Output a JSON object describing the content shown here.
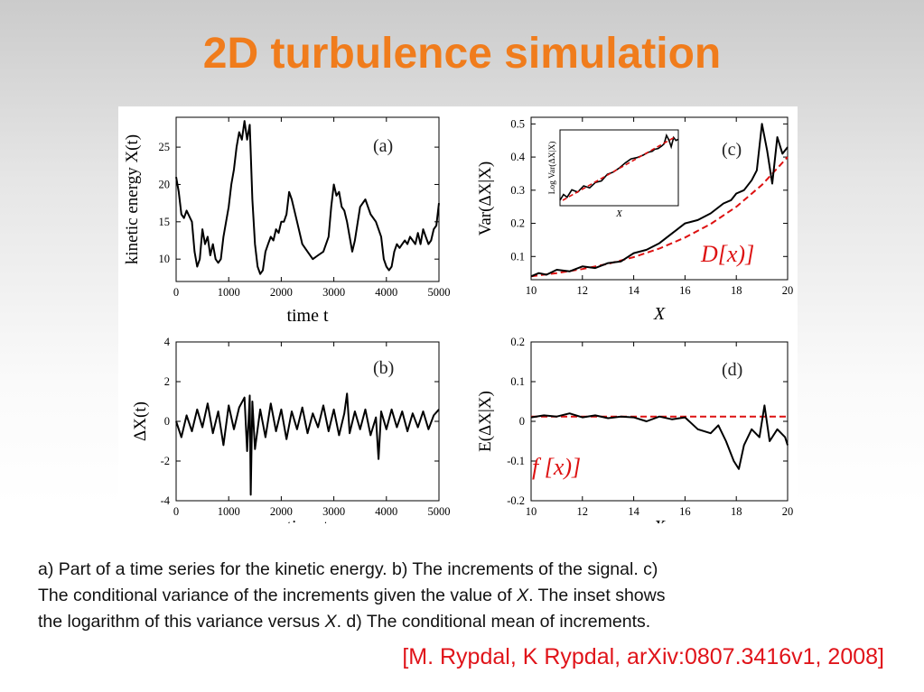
{
  "title": "2D turbulence simulation",
  "caption": {
    "line1": "a) Part of a time series for the kinetic energy. b) The increments of the signal. c)",
    "line2a": "The conditional variance of the increments given the value of ",
    "line2b": "X",
    "line2c": ". The inset shows",
    "line3a": "the logarithm of this variance versus ",
    "line3b": "X",
    "line3c": ". d) The conditional mean of increments."
  },
  "citation": "[M. Rypdal, K Rypdal, arXiv:0807.3416v1, 2008]",
  "colors": {
    "title": "#f07c1c",
    "citation": "#e0141a",
    "fit_line": "#dd1111",
    "series": "#000000"
  },
  "chart_data": [
    {
      "id": "a",
      "panel_label": "(a)",
      "type": "line",
      "xlabel": "time t",
      "ylabel": "kinetic energy X(t)",
      "xlim": [
        0,
        5000
      ],
      "ylim": [
        7,
        29
      ],
      "xticks": [
        0,
        1000,
        2000,
        3000,
        4000,
        5000
      ],
      "yticks": [
        10,
        15,
        20,
        25
      ],
      "series": [
        {
          "x": [
            0,
            50,
            100,
            150,
            200,
            300,
            350,
            400,
            450,
            500,
            550,
            600,
            650,
            700,
            750,
            800,
            850,
            900,
            950,
            1000,
            1050,
            1100,
            1150,
            1200,
            1250,
            1300,
            1350,
            1400,
            1450,
            1500,
            1550,
            1600,
            1650,
            1700,
            1750,
            1800,
            1850,
            1900,
            1950,
            2000,
            2050,
            2100,
            2150,
            2200,
            2300,
            2400,
            2500,
            2600,
            2700,
            2800,
            2900,
            2950,
            3000,
            3050,
            3100,
            3150,
            3200,
            3250,
            3300,
            3350,
            3400,
            3500,
            3600,
            3700,
            3800,
            3900,
            3950,
            4000,
            4050,
            4100,
            4150,
            4200,
            4250,
            4300,
            4350,
            4400,
            4450,
            4500,
            4550,
            4600,
            4650,
            4700,
            4750,
            4800,
            4850,
            4900,
            4950,
            5000
          ],
          "values": [
            21,
            19,
            16,
            15.5,
            16.5,
            15,
            11,
            9,
            10,
            14,
            12,
            13,
            10.5,
            12,
            10,
            9.5,
            10,
            13,
            15,
            17,
            20,
            22,
            25,
            27,
            26,
            28.5,
            26,
            28,
            18,
            12,
            9,
            8,
            8.5,
            11,
            12,
            13,
            12.5,
            14,
            13.5,
            15,
            15,
            16,
            19,
            18,
            15,
            12,
            11,
            10,
            10.5,
            11,
            13,
            17,
            20,
            18.5,
            19,
            17,
            16.5,
            15,
            13,
            11,
            12.5,
            17,
            18,
            16,
            15,
            13,
            10,
            9,
            8.5,
            9,
            11,
            12,
            11.5,
            12,
            12.5,
            12,
            13,
            12.5,
            12,
            13.5,
            12,
            14,
            13,
            12,
            12.5,
            14,
            14.5,
            17.5
          ]
        }
      ]
    },
    {
      "id": "b",
      "panel_label": "(b)",
      "type": "line",
      "xlabel": "time t",
      "ylabel": "ΔX(t)",
      "xlim": [
        0,
        5000
      ],
      "ylim": [
        -4,
        4
      ],
      "xticks": [
        0,
        1000,
        2000,
        3000,
        4000,
        5000
      ],
      "yticks": [
        -4,
        -2,
        0,
        2,
        4
      ],
      "series": [
        {
          "x": [
            0,
            100,
            200,
            300,
            400,
            500,
            600,
            700,
            800,
            900,
            1000,
            1100,
            1200,
            1300,
            1350,
            1400,
            1420,
            1450,
            1500,
            1600,
            1700,
            1800,
            1900,
            2000,
            2100,
            2200,
            2300,
            2400,
            2500,
            2600,
            2700,
            2800,
            2900,
            3000,
            3100,
            3200,
            3250,
            3300,
            3400,
            3500,
            3600,
            3700,
            3800,
            3850,
            3900,
            4000,
            4100,
            4200,
            4300,
            4400,
            4500,
            4600,
            4700,
            4800,
            4900,
            5000
          ],
          "values": [
            0,
            -0.8,
            0.3,
            -0.5,
            0.6,
            -0.3,
            0.9,
            -0.6,
            0.5,
            -1.2,
            0.8,
            -0.4,
            0.7,
            1.2,
            -1.5,
            1.3,
            -3.7,
            1.0,
            -1.4,
            0.6,
            -0.8,
            0.9,
            -0.5,
            0.6,
            -0.9,
            0.5,
            -0.4,
            0.7,
            -0.6,
            0.4,
            -0.3,
            0.8,
            -0.5,
            0.6,
            -0.7,
            0.4,
            1.4,
            -0.6,
            0.5,
            -0.4,
            0.6,
            -0.7,
            0.2,
            -1.9,
            0.5,
            -0.4,
            0.6,
            -0.3,
            0.5,
            -0.5,
            0.4,
            -0.3,
            0.5,
            -0.4,
            0.3,
            0.6
          ]
        }
      ]
    },
    {
      "id": "c",
      "panel_label": "(c)",
      "type": "line",
      "xlabel": "X",
      "ylabel": "Var(ΔX|X)",
      "xlim": [
        10,
        20
      ],
      "ylim": [
        0.03,
        0.52
      ],
      "xticks": [
        10,
        12,
        14,
        16,
        18,
        20
      ],
      "yticks": [
        0.1,
        0.2,
        0.3,
        0.4,
        0.5
      ],
      "annotation": "D[x)]",
      "series": [
        {
          "x": [
            10,
            10.3,
            10.6,
            11,
            11.5,
            12,
            12.5,
            13,
            13.5,
            14,
            14.5,
            15,
            15.5,
            16,
            16.5,
            17,
            17.5,
            17.8,
            18,
            18.3,
            18.6,
            18.8,
            19,
            19.2,
            19.4,
            19.6,
            19.8,
            20
          ],
          "values": [
            0.04,
            0.05,
            0.045,
            0.06,
            0.055,
            0.07,
            0.065,
            0.08,
            0.085,
            0.11,
            0.12,
            0.14,
            0.17,
            0.2,
            0.21,
            0.23,
            0.26,
            0.27,
            0.29,
            0.3,
            0.33,
            0.36,
            0.5,
            0.42,
            0.32,
            0.46,
            0.41,
            0.43
          ]
        }
      ],
      "fit": {
        "x": [
          10,
          11,
          12,
          13,
          14,
          15,
          16,
          17,
          18,
          19,
          20
        ],
        "values": [
          0.04,
          0.05,
          0.062,
          0.078,
          0.098,
          0.124,
          0.157,
          0.198,
          0.25,
          0.316,
          0.4
        ]
      },
      "inset": {
        "xlabel": "X",
        "ylabel": "Log Var(ΔX|X)"
      }
    },
    {
      "id": "d",
      "panel_label": "(d)",
      "type": "line",
      "xlabel": "X",
      "ylabel": "E(ΔX|X)",
      "xlim": [
        10,
        20
      ],
      "ylim": [
        -0.2,
        0.2
      ],
      "xticks": [
        10,
        12,
        14,
        16,
        18,
        20
      ],
      "yticks": [
        -0.2,
        -0.1,
        0,
        0.1,
        0.2
      ],
      "annotation": "f [x)]",
      "series": [
        {
          "x": [
            10,
            10.5,
            11,
            11.5,
            12,
            12.5,
            13,
            13.5,
            14,
            14.5,
            15,
            15.5,
            16,
            16.5,
            17,
            17.3,
            17.6,
            17.9,
            18.1,
            18.3,
            18.6,
            18.9,
            19.1,
            19.3,
            19.6,
            19.9,
            20
          ],
          "values": [
            0.01,
            0.015,
            0.012,
            0.02,
            0.01,
            0.015,
            0.008,
            0.012,
            0.01,
            0.0,
            0.012,
            0.005,
            0.01,
            -0.02,
            -0.03,
            -0.01,
            -0.05,
            -0.1,
            -0.12,
            -0.06,
            -0.02,
            -0.04,
            0.04,
            -0.05,
            -0.02,
            -0.04,
            -0.06
          ]
        }
      ],
      "fit": {
        "x": [
          10,
          20
        ],
        "values": [
          0.012,
          0.012
        ]
      }
    }
  ]
}
